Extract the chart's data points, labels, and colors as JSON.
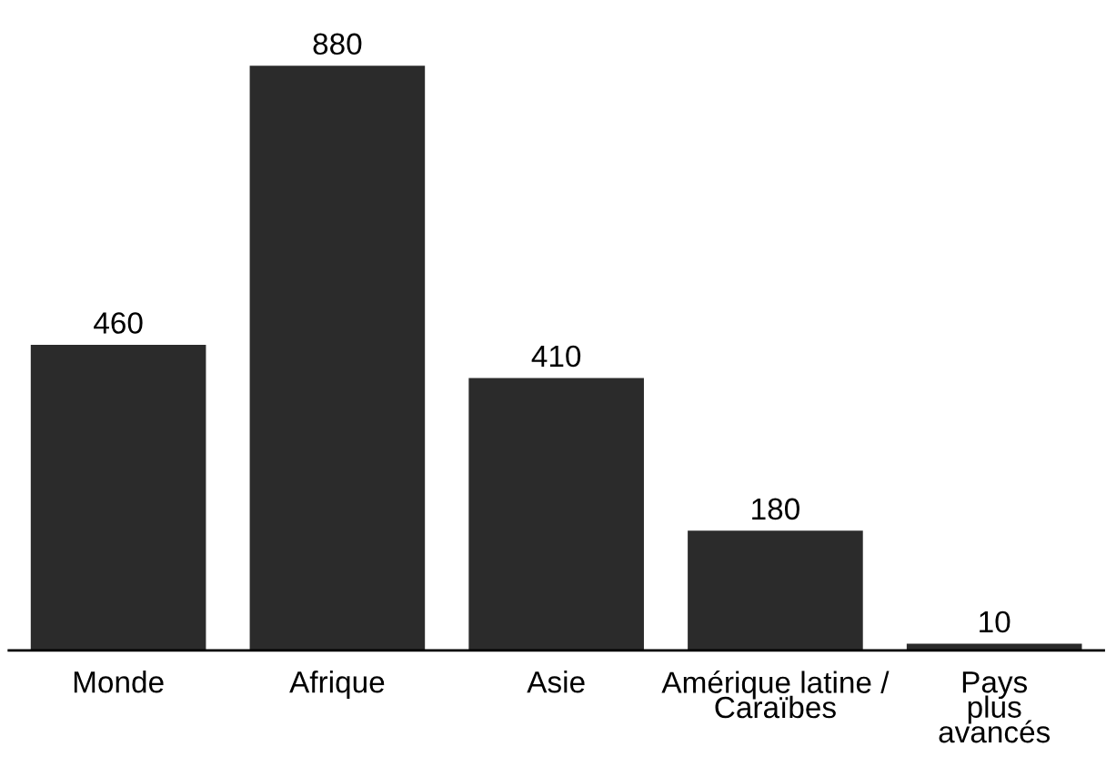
{
  "chart_data": {
    "type": "bar",
    "categories": [
      "Monde",
      "Afrique",
      "Asie",
      "Amérique latine /\nCaraïbes",
      "Pays\nplus\navancés"
    ],
    "values": [
      460,
      880,
      410,
      180,
      10
    ],
    "color": "#2b2b2b",
    "data_labels": true,
    "tick_labels": "x",
    "grid": false
  }
}
